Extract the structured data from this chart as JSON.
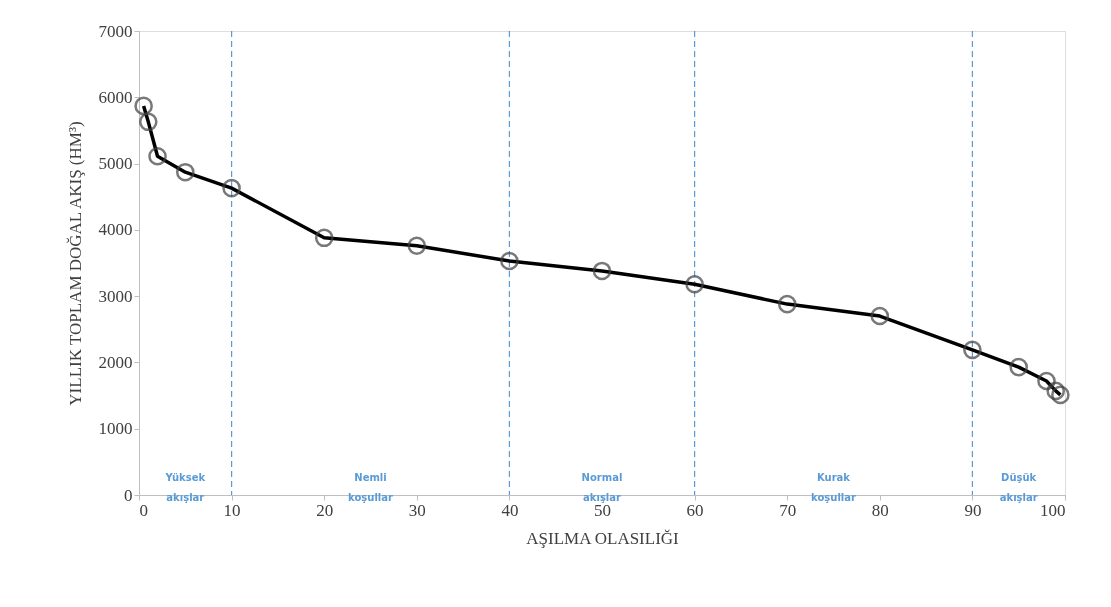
{
  "chart_data": {
    "type": "line",
    "xlabel": "AŞILMA OLASILIĞI",
    "ylabel": "YILLIK TOPLAM DOĞAL AKIŞ (HM³)",
    "x": [
      0.5,
      1,
      2,
      5,
      10,
      20,
      30,
      40,
      50,
      60,
      70,
      80,
      90,
      95,
      98,
      99,
      99.5
    ],
    "series": [
      {
        "color": "#000000",
        "values": [
          5870,
          5630,
          5110,
          4870,
          4630,
          3880,
          3760,
          3530,
          3380,
          3180,
          2880,
          2700,
          2190,
          1930,
          1720,
          1570,
          1510
        ]
      }
    ],
    "xlim": [
      0,
      100
    ],
    "xticks": [
      0,
      10,
      20,
      30,
      40,
      50,
      60,
      70,
      80,
      90,
      100
    ],
    "ylim": [
      0,
      7000
    ],
    "yticks": [
      0,
      1000,
      2000,
      3000,
      4000,
      5000,
      6000,
      7000
    ],
    "grid": false,
    "marker": "circle",
    "line_style": "solid",
    "ref_lines": [
      {
        "axis": "x",
        "value": 10,
        "color": "#5b9bd5",
        "line_style": "dashed"
      },
      {
        "axis": "x",
        "value": 40,
        "color": "#5b9bd5",
        "line_style": "dashed"
      },
      {
        "axis": "x",
        "value": 60,
        "color": "#5b9bd5",
        "line_style": "dashed"
      },
      {
        "axis": "x",
        "value": 90,
        "color": "#5b9bd5",
        "line_style": "dashed"
      }
    ],
    "annotations": [
      "Yüksek akışlar",
      "Nemli koşullar",
      "Normal akışlar",
      "Kurak koşullar",
      "Düşük akışlar"
    ]
  }
}
